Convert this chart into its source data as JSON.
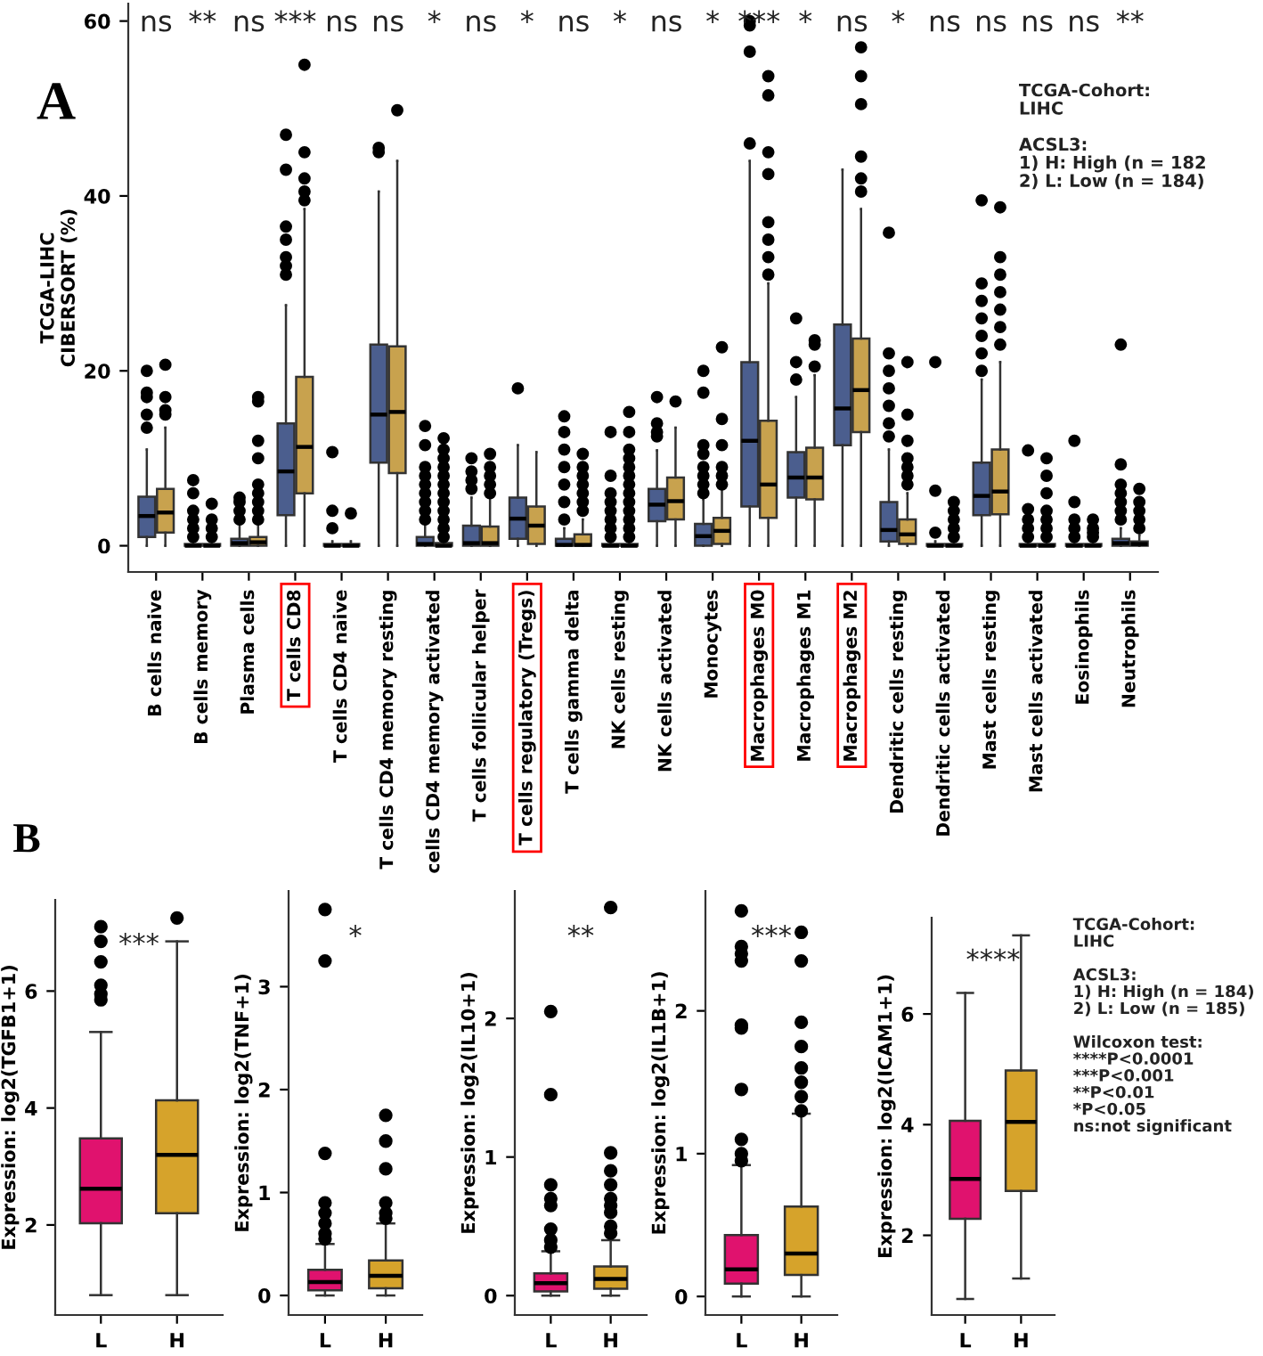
{
  "chart_data": [
    {
      "type": "box",
      "ylabel": "TCGA-LIHC\nCIBERSORT (%)",
      "ylim": [
        -3,
        62
      ],
      "yticks": [
        0,
        20,
        40,
        60
      ],
      "categories": [
        "B cells naive",
        "B cells memory",
        "Plasma cells",
        "T cells CD8",
        "T cells CD4 naive",
        "T cells CD4 memory resting",
        "cells CD4 memory activated",
        "T cells follicular helper",
        "T cells regulatory (Tregs)",
        "T cells gamma delta",
        "NK cells resting",
        "NK cells activated",
        "Monocytes",
        "Macrophages M0",
        "Macrophages M1",
        "Macrophages M2",
        "Dendritic cells resting",
        "Dendritic cells activated",
        "Mast cells resting",
        "Mast cells activated",
        "Eosinophils",
        "Neutrophils"
      ],
      "series": [
        {
          "color": "#4b5e8e",
          "boxes": [
            {
              "low": 0,
              "q1": 1.0,
              "median": 3.4,
              "q3": 5.6,
              "high": 11,
              "outliers": [
                13.5,
                15,
                17,
                17.5,
                20
              ]
            },
            {
              "low": 0,
              "q1": 0,
              "median": 0,
              "q3": 0.2,
              "high": 0.5,
              "outliers": [
                1,
                2,
                3,
                4,
                6,
                7.5
              ]
            },
            {
              "low": 0,
              "q1": 0,
              "median": 0.3,
              "q3": 0.8,
              "high": 2.5,
              "outliers": [
                3,
                4,
                5,
                5.5
              ]
            },
            {
              "low": 0,
              "q1": 3.5,
              "median": 8.5,
              "q3": 14,
              "high": 27.5,
              "outliers": [
                31,
                32,
                33,
                35,
                36.5,
                43,
                47
              ]
            },
            {
              "low": 0,
              "q1": 0,
              "median": 0,
              "q3": 0.2,
              "high": 0.5,
              "outliers": [
                2,
                4,
                10.7
              ]
            },
            {
              "low": 0,
              "q1": 9.5,
              "median": 15,
              "q3": 23,
              "high": 40.5,
              "outliers": [
                45,
                45.5
              ]
            },
            {
              "low": 0,
              "q1": 0,
              "median": 0.2,
              "q3": 1,
              "high": 2.5,
              "outliers": [
                3,
                4,
                5,
                6,
                7,
                8,
                9,
                11.5,
                13.7
              ]
            },
            {
              "low": 0,
              "q1": 0,
              "median": 0.3,
              "q3": 2.3,
              "high": 5.5,
              "outliers": [
                6.5,
                7.5,
                8.5,
                10
              ]
            },
            {
              "low": 0,
              "q1": 0.8,
              "median": 3.1,
              "q3": 5.5,
              "high": 11.5,
              "outliers": [
                18
              ]
            },
            {
              "low": 0,
              "q1": 0,
              "median": 0.1,
              "q3": 0.8,
              "high": 2,
              "outliers": [
                3,
                5,
                7,
                9,
                11,
                13,
                14.8
              ]
            },
            {
              "low": 0,
              "q1": 0,
              "median": 0,
              "q3": 0.2,
              "high": 0.5,
              "outliers": [
                1,
                2,
                3,
                4,
                5,
                6,
                8,
                13
              ]
            },
            {
              "low": 0,
              "q1": 2.8,
              "median": 4.7,
              "q3": 6.5,
              "high": 10.9,
              "outliers": [
                12.5,
                13,
                14,
                17
              ]
            },
            {
              "low": 0,
              "q1": 0,
              "median": 1.1,
              "q3": 2.5,
              "high": 5.3,
              "outliers": [
                6,
                7,
                8,
                9,
                10.5,
                11.5,
                17.5,
                20
              ]
            },
            {
              "low": 0,
              "q1": 4.5,
              "median": 12,
              "q3": 21,
              "high": 44,
              "outliers": [
                46,
                56.5,
                59.5,
                60
              ]
            },
            {
              "low": 0,
              "q1": 5.5,
              "median": 7.8,
              "q3": 10.7,
              "high": 17,
              "outliers": [
                19,
                21,
                26
              ]
            },
            {
              "low": 0,
              "q1": 11.5,
              "median": 15.7,
              "q3": 25.3,
              "high": 43
            },
            {
              "low": 0,
              "q1": 0.5,
              "median": 1.8,
              "q3": 5,
              "high": 11,
              "outliers": [
                12.5,
                14,
                16,
                18,
                20,
                22,
                35.8
              ]
            },
            {
              "low": 0,
              "q1": 0,
              "median": 0,
              "q3": 0.2,
              "high": 0.5,
              "outliers": [
                1.5,
                6.3,
                21
              ]
            },
            {
              "low": 0,
              "q1": 3.5,
              "median": 5.7,
              "q3": 9.5,
              "high": 19,
              "outliers": [
                20,
                22,
                24,
                26,
                28,
                30,
                39.5
              ]
            },
            {
              "low": 0,
              "q1": 0,
              "median": 0,
              "q3": 0.2,
              "high": 0.5,
              "outliers": [
                1,
                2,
                3,
                4.2,
                10.9
              ]
            },
            {
              "low": 0,
              "q1": 0,
              "median": 0,
              "q3": 0.2,
              "high": 0.5,
              "outliers": [
                1,
                2,
                3,
                5,
                12
              ]
            },
            {
              "low": 0,
              "q1": 0,
              "median": 0.3,
              "q3": 0.8,
              "high": 2,
              "outliers": [
                3,
                4,
                5,
                6,
                7,
                9.3,
                23
              ]
            }
          ]
        },
        {
          "color": "#c8a24e",
          "boxes": [
            {
              "low": 0,
              "q1": 1.5,
              "median": 3.8,
              "q3": 6.5,
              "high": 13.5,
              "outliers": [
                15,
                15.5,
                17,
                20.7
              ]
            },
            {
              "low": 0,
              "q1": 0,
              "median": 0,
              "q3": 0.2,
              "high": 0.5,
              "outliers": [
                1,
                2,
                3,
                4.8
              ]
            },
            {
              "low": 0,
              "q1": 0,
              "median": 0.4,
              "q3": 1.0,
              "high": 2.8,
              "outliers": [
                3,
                4,
                5,
                6,
                7,
                10,
                12,
                16.5,
                17
              ]
            },
            {
              "low": 0,
              "q1": 6,
              "median": 11.3,
              "q3": 19.3,
              "high": 38.5,
              "outliers": [
                39.5,
                40.5,
                42,
                45,
                55
              ]
            },
            {
              "low": 0,
              "q1": 0,
              "median": 0,
              "q3": 0.2,
              "high": 0.5,
              "outliers": [
                3.7
              ]
            },
            {
              "low": 0,
              "q1": 8.3,
              "median": 15.3,
              "q3": 22.8,
              "high": 44,
              "outliers": [
                49.8
              ]
            },
            {
              "low": 0,
              "q1": 0,
              "median": 0,
              "q3": 0.3,
              "high": 0.8,
              "outliers": [
                1,
                2,
                3,
                4,
                5,
                6,
                7,
                8,
                9,
                10,
                11,
                12.3
              ]
            },
            {
              "low": 0,
              "q1": 0,
              "median": 0.3,
              "q3": 2.2,
              "high": 5.5,
              "outliers": [
                6,
                7,
                8,
                9,
                10.5
              ]
            },
            {
              "low": 0,
              "q1": 0.2,
              "median": 2.3,
              "q3": 4.5,
              "high": 10.7
            },
            {
              "low": 0,
              "q1": 0,
              "median": 0.1,
              "q3": 1.3,
              "high": 3,
              "outliers": [
                4,
                5,
                6,
                7,
                8,
                9,
                10.5
              ]
            },
            {
              "low": 0,
              "q1": 0,
              "median": 0,
              "q3": 0.2,
              "high": 0.5,
              "outliers": [
                1,
                2,
                3,
                4,
                5,
                6,
                7,
                8,
                9,
                10,
                11,
                13,
                15.3
              ]
            },
            {
              "low": 0,
              "q1": 3,
              "median": 5.1,
              "q3": 7.8,
              "high": 13.5,
              "outliers": [
                16.5
              ]
            },
            {
              "low": 0,
              "q1": 0.2,
              "median": 1.7,
              "q3": 3.2,
              "high": 6.8,
              "outliers": [
                7,
                8,
                9,
                11.5,
                14.5,
                22.7
              ]
            },
            {
              "low": 0,
              "q1": 3.2,
              "median": 7,
              "q3": 14.3,
              "high": 30,
              "outliers": [
                31,
                33,
                35,
                37,
                42.5,
                45,
                51.5,
                53.7
              ]
            },
            {
              "low": 0,
              "q1": 5.3,
              "median": 7.8,
              "q3": 11.2,
              "high": 19.5,
              "outliers": [
                20.5,
                23,
                23.5
              ]
            },
            {
              "low": 0,
              "q1": 13,
              "median": 17.8,
              "q3": 23.7,
              "high": 38.5,
              "outliers": [
                40.5,
                42,
                44.5,
                50.5,
                53.7,
                57
              ]
            },
            {
              "low": 0,
              "q1": 0.2,
              "median": 1.3,
              "q3": 3,
              "high": 6,
              "outliers": [
                7,
                8,
                9,
                10,
                12,
                15,
                21
              ]
            },
            {
              "low": 0,
              "q1": 0,
              "median": 0,
              "q3": 0.2,
              "high": 0.5,
              "outliers": [
                1,
                2,
                3,
                4,
                5
              ]
            },
            {
              "low": 0,
              "q1": 3.6,
              "median": 6.2,
              "q3": 11,
              "high": 21,
              "outliers": [
                23,
                25,
                27,
                29,
                31,
                33,
                38.7
              ]
            },
            {
              "low": 0,
              "q1": 0,
              "median": 0,
              "q3": 0.2,
              "high": 0.5,
              "outliers": [
                1,
                2,
                3,
                4,
                6,
                8,
                10
              ]
            },
            {
              "low": 0,
              "q1": 0,
              "median": 0,
              "q3": 0.2,
              "high": 0.5,
              "outliers": [
                1,
                1.5,
                2,
                3
              ]
            },
            {
              "low": 0,
              "q1": 0,
              "median": 0.2,
              "q3": 0.5,
              "high": 1.2,
              "outliers": [
                2,
                3,
                4,
                5,
                6.5
              ]
            }
          ]
        }
      ],
      "annotations": [
        "A",
        "TCGA-Cohort:\nLIHC\n\nACSL3:\n1) H: High (n = 182\n2) L: Low (n = 184)",
        "ns",
        "**",
        "ns",
        "***",
        "ns",
        "ns",
        "*",
        "ns",
        "*",
        "ns",
        "*",
        "ns",
        "*",
        "***",
        "*",
        "ns",
        "*",
        "ns",
        "ns",
        "ns",
        "ns",
        "**"
      ]
    },
    {
      "type": "box",
      "ylabel": "Expression: log2(TGFB1+1)",
      "ylim": [
        0.46,
        7.56
      ],
      "yticks": [
        2,
        4,
        6
      ],
      "categories": [
        "L",
        "H"
      ],
      "colors": [
        "#e0126e",
        "#d6a32b"
      ],
      "boxes": [
        {
          "low": 0.8,
          "q1": 2.03,
          "median": 2.62,
          "q3": 3.48,
          "high": 5.3,
          "outliers": [
            5.85,
            5.95,
            6.1,
            6.5,
            6.85,
            7.1
          ]
        },
        {
          "low": 0.8,
          "q1": 2.2,
          "median": 3.2,
          "q3": 4.13,
          "high": 6.85,
          "outliers": [
            7.25
          ]
        }
      ],
      "annotations": [
        "B",
        "***"
      ]
    },
    {
      "type": "box",
      "ylabel": "Expression: log2(TNF+1)",
      "ylim": [
        -0.19,
        3.93
      ],
      "yticks": [
        0,
        1,
        2,
        3
      ],
      "categories": [
        "L",
        "H"
      ],
      "colors": [
        "#e0126e",
        "#d6a32b"
      ],
      "boxes": [
        {
          "low": 0,
          "q1": 0.05,
          "median": 0.13,
          "q3": 0.25,
          "high": 0.5,
          "outliers": [
            0.55,
            0.6,
            0.7,
            0.8,
            0.9,
            1.38,
            3.25,
            3.75
          ]
        },
        {
          "low": 0,
          "q1": 0.07,
          "median": 0.19,
          "q3": 0.34,
          "high": 0.7,
          "outliers": [
            0.75,
            0.8,
            0.9,
            1.23,
            1.5,
            1.75
          ]
        }
      ],
      "annotations": [
        "*"
      ]
    },
    {
      "type": "box",
      "ylabel": "Expression: log2(IL10+1)",
      "ylim": [
        -0.14,
        2.92
      ],
      "yticks": [
        0,
        1,
        2
      ],
      "categories": [
        "L",
        "H"
      ],
      "colors": [
        "#e0126e",
        "#d6a32b"
      ],
      "boxes": [
        {
          "low": 0,
          "q1": 0.03,
          "median": 0.09,
          "q3": 0.16,
          "high": 0.32,
          "outliers": [
            0.35,
            0.4,
            0.48,
            0.65,
            0.7,
            0.8,
            1.45,
            2.05
          ]
        },
        {
          "low": 0,
          "q1": 0.05,
          "median": 0.12,
          "q3": 0.21,
          "high": 0.4,
          "outliers": [
            0.45,
            0.5,
            0.6,
            0.65,
            0.7,
            0.8,
            0.9,
            1.03,
            2.8
          ]
        }
      ],
      "annotations": [
        "**"
      ]
    },
    {
      "type": "box",
      "ylabel": "Expression: log2(IL1B+1)",
      "ylim": [
        -0.13,
        2.84
      ],
      "yticks": [
        0,
        1,
        2
      ],
      "categories": [
        "L",
        "H"
      ],
      "colors": [
        "#e0126e",
        "#d6a32b"
      ],
      "boxes": [
        {
          "low": 0,
          "q1": 0.09,
          "median": 0.19,
          "q3": 0.43,
          "high": 0.92,
          "outliers": [
            0.95,
            1.0,
            1.1,
            1.45,
            1.88,
            1.9,
            2.35,
            2.4,
            2.45,
            2.7
          ]
        },
        {
          "low": 0,
          "q1": 0.15,
          "median": 0.3,
          "q3": 0.63,
          "high": 1.28,
          "outliers": [
            1.3,
            1.4,
            1.5,
            1.6,
            1.75,
            1.92,
            2.35,
            2.55
          ]
        }
      ],
      "annotations": [
        "***"
      ]
    },
    {
      "type": "box",
      "ylabel": "Expression: log2(ICAM1+1)",
      "ylim": [
        0.56,
        7.74
      ],
      "yticks": [
        2,
        4,
        6
      ],
      "categories": [
        "L",
        "H"
      ],
      "colors": [
        "#e0126e",
        "#d6a32b"
      ],
      "boxes": [
        {
          "low": 0.85,
          "q1": 2.3,
          "median": 3.02,
          "q3": 4.07,
          "high": 6.38
        },
        {
          "low": 1.22,
          "q1": 2.8,
          "median": 4.05,
          "q3": 4.98,
          "high": 7.42
        }
      ],
      "annotations": [
        "****",
        "TCGA-Cohort:\nLIHC\n\nACSL3:\n1) H: High (n = 184)\n2) L: Low (n = 185)\n\nWilcoxon test:\n****P<0.0001\n***P<0.001\n**P<0.01\n*P<0.05\nns:not significant"
      ]
    }
  ]
}
